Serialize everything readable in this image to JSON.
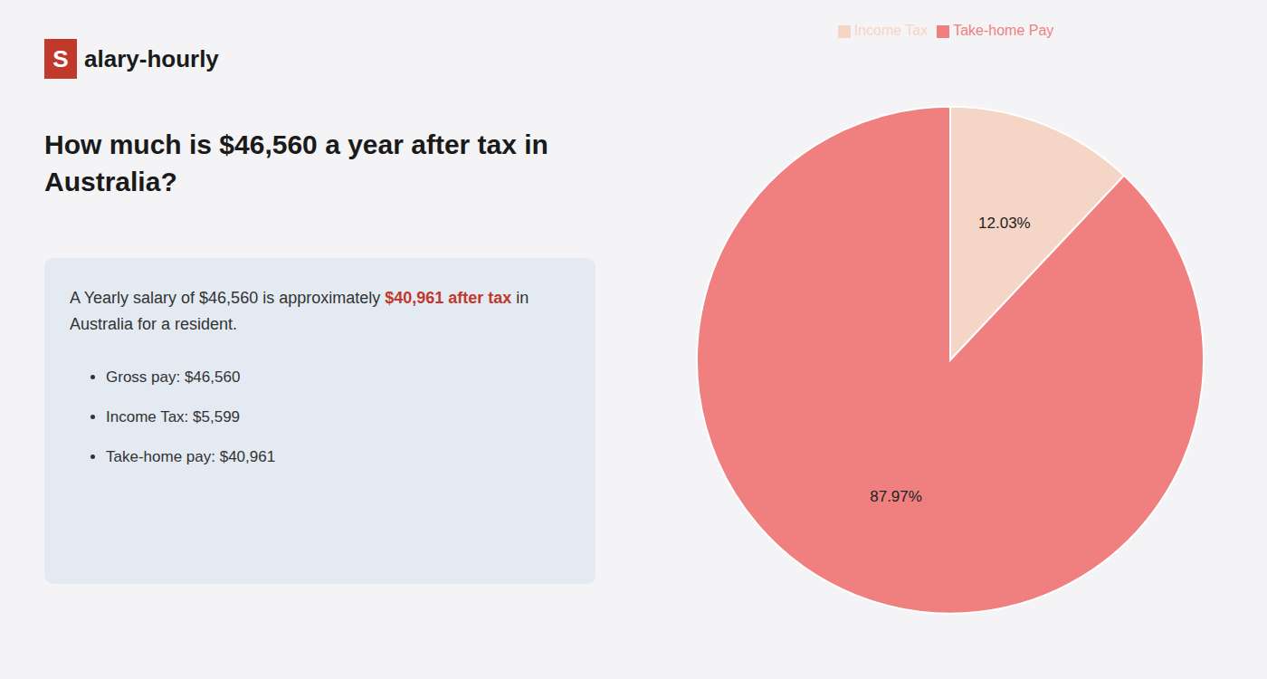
{
  "chart_data": {
    "type": "pie",
    "title": "How much is $46,560 a year after tax in\nAustralia?",
    "annotations": [
      "S",
      "alary-hourly",
      "A Yearly salary of $46,560 is approximately",
      "$40,961 after tax",
      "in",
      "Australia for a resident.",
      "Gross pay: $46,560",
      "Income Tax: $5,599",
      "Take-home pay: $40,961"
    ],
    "categories": [
      "Income Tax",
      "Take-home Pay"
    ],
    "values": [
      12.03,
      87.97
    ],
    "value_labels": [
      "12.03%",
      "87.97%"
    ],
    "colors": [
      "#f5d5c5",
      "#f08080"
    ],
    "legend": "top",
    "data_labels": true
  }
}
